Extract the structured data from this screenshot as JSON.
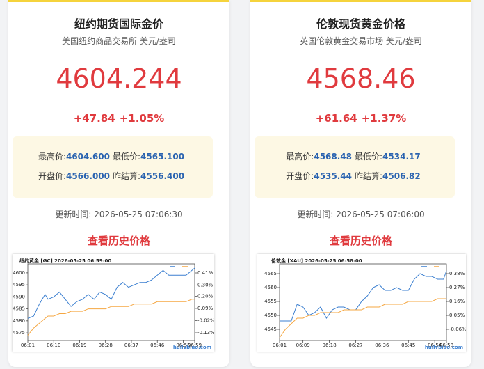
{
  "cards": [
    {
      "title": "纽约期货国际金价",
      "subtitle": "美国纽约商品交易所 美元/盎司",
      "price": "4604.244",
      "change": "+47.84",
      "change_pct": "+1.05%",
      "high_label": "最高价:",
      "high": "4604.600",
      "low_label": "最低价:",
      "low": "4565.100",
      "open_label": "开盘价:",
      "open": "4566.000",
      "prev_label": "昨结算:",
      "prev": "4556.400",
      "update_label": "更新时间:",
      "update_time": "2026-05-25 07:06:30",
      "link": "查看历史价格",
      "chart": {
        "type": "line",
        "title": "纽约黄金 [GC]   2026-05-25 06:59:00",
        "watermark": "huilvbiao.com",
        "x": [
          1,
          3,
          5,
          7,
          8,
          10,
          12,
          14,
          16,
          18,
          20,
          22,
          24,
          26,
          28,
          30,
          32,
          34,
          36,
          38,
          40,
          42,
          44,
          46,
          48,
          50,
          52,
          54,
          56,
          58,
          59
        ],
        "series": [
          {
            "color": "#3b7fd0",
            "values": [
              4581,
              4582,
              4587,
              4591,
              4589,
              4590,
              4592,
              4589,
              4586,
              4588,
              4589,
              4591,
              4589,
              4592,
              4591,
              4589,
              4594,
              4596,
              4594,
              4595,
              4596,
              4596,
              4597,
              4599,
              4601,
              4599,
              4599,
              4599,
              4599,
              4601,
              4602
            ]
          },
          {
            "color": "#f5a742",
            "values": [
              4574,
              4577,
              4579,
              4581,
              4582,
              4582,
              4583,
              4583,
              4584,
              4584,
              4584,
              4585,
              4585,
              4585,
              4585,
              4586,
              4586,
              4586,
              4586,
              4587,
              4587,
              4587,
              4587,
              4588,
              4588,
              4588,
              4588,
              4588,
              4588,
              4589,
              4589
            ]
          }
        ],
        "xlim": [
          1,
          59
        ],
        "ylim": [
          4573,
          4602
        ],
        "yticks": [
          4575,
          4580,
          4585,
          4590,
          4595,
          4600
        ],
        "y2lim": [
          -0.174,
          0.454
        ],
        "y2ticks": [
          {
            "value": 0.41,
            "label": "0.41%"
          },
          {
            "value": 0.3,
            "label": "0.30%"
          },
          {
            "value": 0.2,
            "label": "0.20%"
          },
          {
            "value": 0.09,
            "label": "0.09%"
          },
          {
            "value": -0.02,
            "label": "-0.02%"
          },
          {
            "value": -0.13,
            "label": "-0.13%"
          }
        ],
        "xticks": [
          {
            "value": 1,
            "label": "06:01"
          },
          {
            "value": 10,
            "label": "06:10"
          },
          {
            "value": 19,
            "label": "06:19"
          },
          {
            "value": 28,
            "label": "06:28"
          },
          {
            "value": 37,
            "label": "06:37"
          },
          {
            "value": 46,
            "label": "06:46"
          },
          {
            "value": 55,
            "label": "06:55"
          },
          {
            "value": 59,
            "label": "06:59"
          }
        ]
      }
    },
    {
      "title": "伦敦现货黄金价格",
      "subtitle": "英国伦敦黄金交易市场 美元/盎司",
      "price": "4568.46",
      "change": "+61.64",
      "change_pct": "+1.37%",
      "high_label": "最高价:",
      "high": "4568.48",
      "low_label": "最低价:",
      "low": "4534.17",
      "open_label": "开盘价:",
      "open": "4535.44",
      "prev_label": "昨结算:",
      "prev": "4506.82",
      "update_label": "更新时间:",
      "update_time": "2026-05-25 07:06:00",
      "link": "查看历史价格",
      "chart": {
        "type": "line",
        "title": "伦敦金 [XAU]   2026-05-25 06:58:00",
        "watermark": "huilvbiao.com",
        "x": [
          1,
          3,
          5,
          7,
          9,
          11,
          13,
          15,
          17,
          19,
          21,
          23,
          25,
          27,
          29,
          31,
          33,
          35,
          37,
          39,
          41,
          43,
          45,
          47,
          49,
          51,
          53,
          55,
          57,
          58
        ],
        "series": [
          {
            "color": "#3b7fd0",
            "values": [
              4548,
              4548,
              4548,
              4554,
              4553,
              4550,
              4551,
              4553,
              4549,
              4552,
              4553,
              4553,
              4552,
              4552,
              4555,
              4557,
              4560,
              4561,
              4559,
              4559,
              4560,
              4559,
              4559,
              4563,
              4565,
              4564,
              4564,
              4563,
              4563,
              4566
            ]
          },
          {
            "color": "#f5a742",
            "values": [
              4542,
              4545,
              4547,
              4549,
              4549,
              4550,
              4550,
              4551,
              4551,
              4551,
              4551,
              4552,
              4552,
              4552,
              4552,
              4553,
              4553,
              4553,
              4554,
              4554,
              4554,
              4554,
              4555,
              4555,
              4555,
              4555,
              4555,
              4556,
              4556,
              4556
            ]
          }
        ],
        "xlim": [
          1,
          58
        ],
        "ylim": [
          4542,
          4567
        ],
        "yticks": [
          4545,
          4550,
          4555,
          4560,
          4565
        ],
        "y2lim": [
          -0.126,
          0.424
        ],
        "y2ticks": [
          {
            "value": 0.38,
            "label": "0.38%"
          },
          {
            "value": 0.27,
            "label": "0.27%"
          },
          {
            "value": 0.16,
            "label": "0.16%"
          },
          {
            "value": 0.05,
            "label": "0.05%"
          },
          {
            "value": -0.06,
            "label": "-0.06%"
          }
        ],
        "xticks": [
          {
            "value": 1,
            "label": "06:01"
          },
          {
            "value": 9,
            "label": "06:09"
          },
          {
            "value": 18,
            "label": "06:18"
          },
          {
            "value": 27,
            "label": "06:27"
          },
          {
            "value": 36,
            "label": "06:36"
          },
          {
            "value": 45,
            "label": "06:45"
          },
          {
            "value": 54,
            "label": "06:54"
          },
          {
            "value": 58,
            "label": "06:58"
          }
        ]
      }
    }
  ]
}
